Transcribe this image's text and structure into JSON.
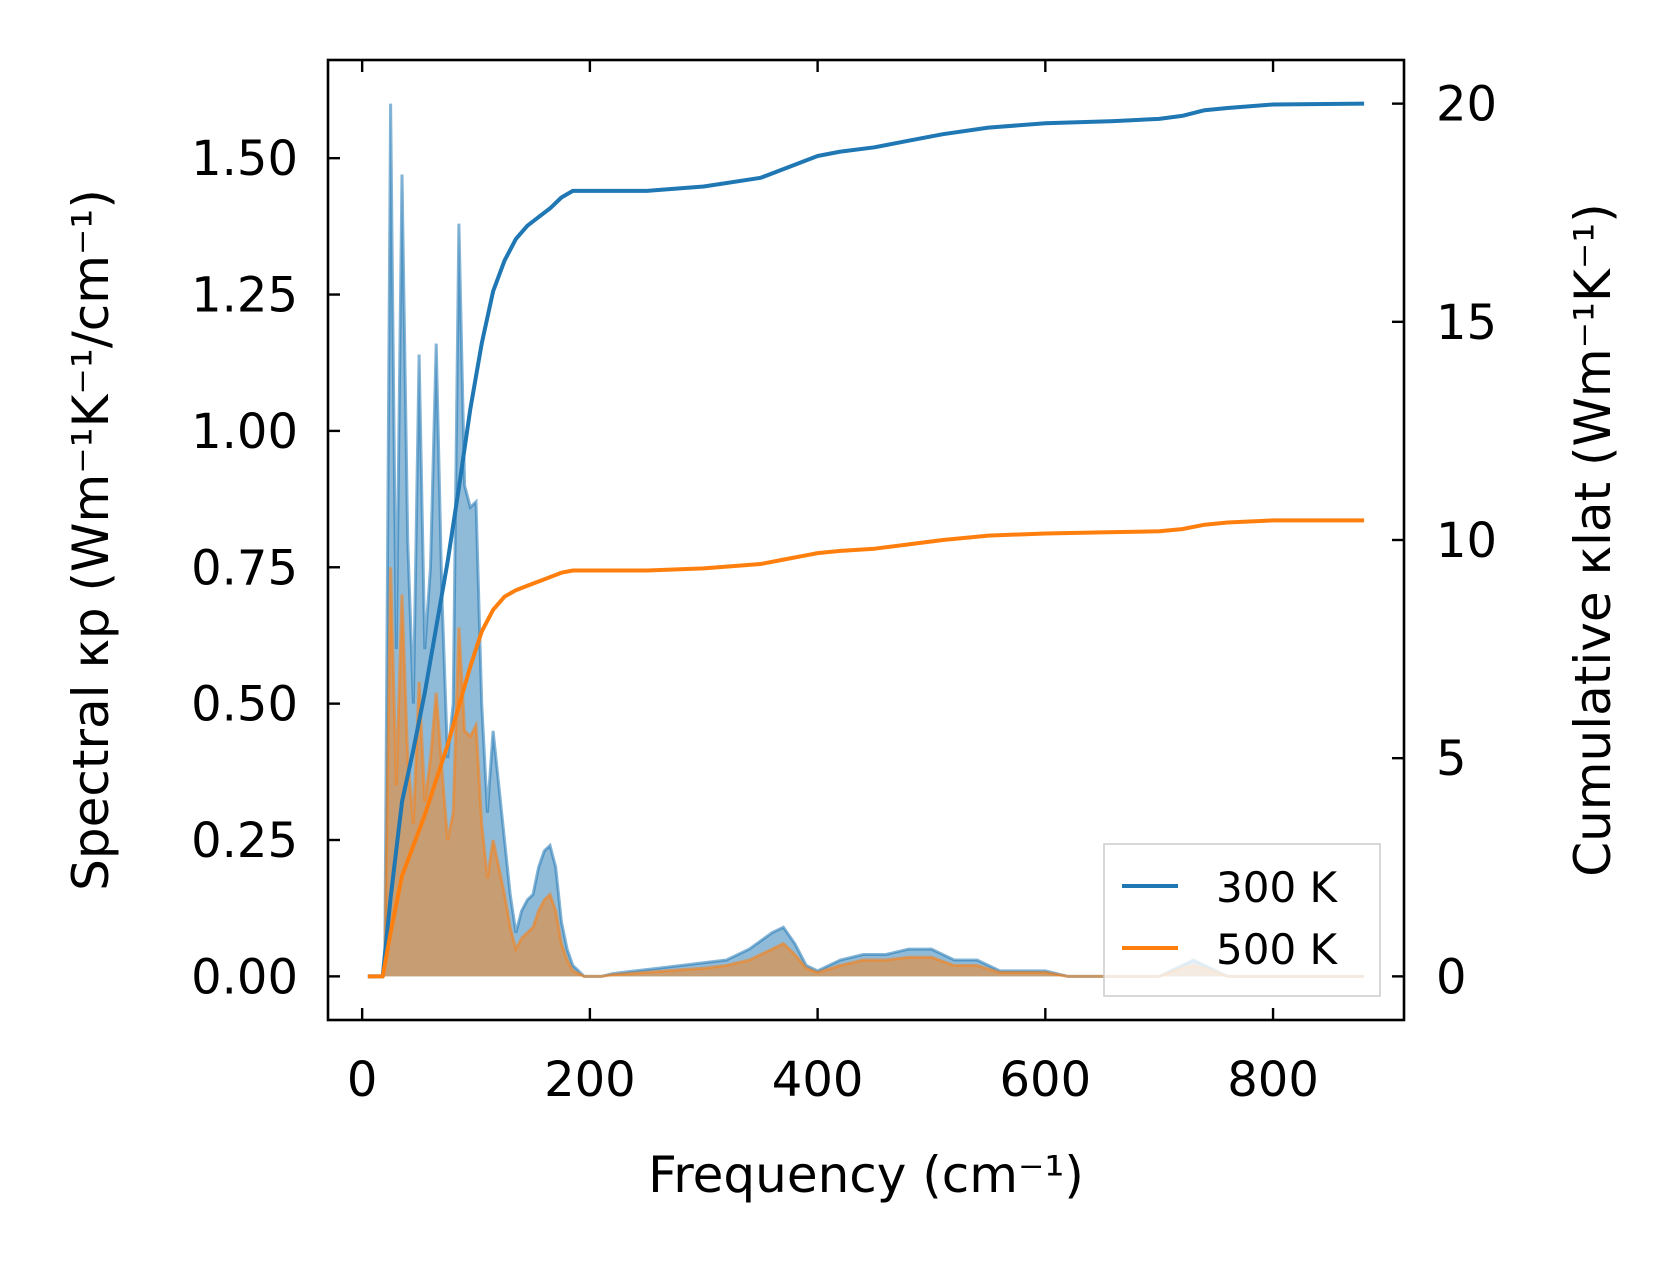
{
  "chart_data": {
    "type": "line",
    "title": "",
    "xlabel": "Frequency (cm⁻¹)",
    "ylabel_left": "Spectral κp (Wm⁻¹K⁻¹/cm⁻¹)",
    "ylabel_right": "Cumulative κlat (Wm⁻¹K⁻¹)",
    "xlim": [
      -30,
      915
    ],
    "ylim_left": [
      -0.08,
      1.68
    ],
    "ylim_right": [
      -1.0,
      21.0
    ],
    "xticks": [
      0,
      200,
      400,
      600,
      800
    ],
    "yticks_left": [
      0.0,
      0.25,
      0.5,
      0.75,
      1.0,
      1.25,
      1.5
    ],
    "yticks_left_labels": [
      "0.00",
      "0.25",
      "0.50",
      "0.75",
      "1.00",
      "1.25",
      "1.50"
    ],
    "yticks_right": [
      0,
      5,
      10,
      15,
      20
    ],
    "yticks_right_labels": [
      "0",
      "5",
      "10",
      "15",
      "20"
    ],
    "legend": {
      "position": "lower-right",
      "entries": [
        "300 K",
        "500 K"
      ]
    },
    "colors": {
      "300K": "#1f77b4",
      "500K": "#ff7f0e"
    },
    "spectral_series": [
      {
        "name": "300 K",
        "color": "#1f77b4",
        "x": [
          5,
          18,
          20,
          25,
          30,
          35,
          40,
          45,
          50,
          55,
          60,
          65,
          70,
          75,
          80,
          85,
          90,
          95,
          100,
          105,
          110,
          115,
          120,
          125,
          130,
          135,
          140,
          145,
          150,
          155,
          160,
          165,
          170,
          175,
          180,
          185,
          190,
          195,
          200,
          210,
          220,
          240,
          260,
          280,
          300,
          320,
          340,
          360,
          370,
          380,
          390,
          400,
          420,
          440,
          460,
          480,
          500,
          520,
          540,
          560,
          580,
          600,
          620,
          640,
          660,
          680,
          700,
          720,
          730,
          740,
          760,
          780,
          800,
          820,
          840,
          860,
          880
        ],
        "y": [
          0.0,
          0.0,
          0.05,
          1.6,
          0.6,
          1.47,
          0.8,
          0.5,
          1.14,
          0.6,
          0.75,
          1.16,
          0.7,
          0.4,
          0.5,
          1.38,
          0.9,
          0.86,
          0.87,
          0.5,
          0.3,
          0.45,
          0.35,
          0.25,
          0.15,
          0.08,
          0.12,
          0.14,
          0.15,
          0.2,
          0.23,
          0.24,
          0.2,
          0.1,
          0.05,
          0.02,
          0.01,
          0.0,
          0.0,
          0.0,
          0.005,
          0.01,
          0.015,
          0.02,
          0.025,
          0.03,
          0.05,
          0.08,
          0.09,
          0.06,
          0.02,
          0.01,
          0.03,
          0.04,
          0.04,
          0.05,
          0.05,
          0.03,
          0.03,
          0.01,
          0.01,
          0.01,
          0.0,
          0.0,
          0.0,
          0.0,
          0.0,
          0.02,
          0.03,
          0.02,
          0.0,
          0.0,
          0.0,
          0.0,
          0.0,
          0.0,
          0.0
        ]
      },
      {
        "name": "500 K",
        "color": "#ff7f0e",
        "x": [
          5,
          18,
          20,
          25,
          30,
          35,
          40,
          45,
          50,
          55,
          60,
          65,
          70,
          75,
          80,
          85,
          90,
          95,
          100,
          105,
          110,
          115,
          120,
          125,
          130,
          135,
          140,
          145,
          150,
          155,
          160,
          165,
          170,
          175,
          180,
          185,
          190,
          195,
          200,
          210,
          220,
          240,
          260,
          280,
          300,
          320,
          340,
          360,
          370,
          380,
          390,
          400,
          420,
          440,
          460,
          480,
          500,
          520,
          540,
          560,
          580,
          600,
          620,
          640,
          660,
          680,
          700,
          720,
          730,
          740,
          760,
          780,
          800,
          820,
          840,
          860,
          880
        ],
        "y": [
          0.0,
          0.0,
          0.03,
          0.75,
          0.35,
          0.7,
          0.4,
          0.28,
          0.54,
          0.32,
          0.4,
          0.52,
          0.38,
          0.25,
          0.3,
          0.64,
          0.45,
          0.44,
          0.46,
          0.28,
          0.18,
          0.25,
          0.2,
          0.15,
          0.09,
          0.05,
          0.07,
          0.08,
          0.09,
          0.12,
          0.14,
          0.15,
          0.12,
          0.06,
          0.03,
          0.01,
          0.005,
          0.0,
          0.0,
          0.0,
          0.003,
          0.006,
          0.009,
          0.012,
          0.015,
          0.02,
          0.03,
          0.05,
          0.06,
          0.04,
          0.015,
          0.007,
          0.02,
          0.03,
          0.03,
          0.035,
          0.035,
          0.02,
          0.02,
          0.007,
          0.007,
          0.007,
          0.0,
          0.0,
          0.0,
          0.0,
          0.0,
          0.015,
          0.02,
          0.015,
          0.0,
          0.0,
          0.0,
          0.0,
          0.0,
          0.0,
          0.0
        ]
      }
    ],
    "cumulative_series": [
      {
        "name": "300 K",
        "color": "#1f77b4",
        "x": [
          5,
          18,
          25,
          35,
          45,
          55,
          65,
          75,
          85,
          95,
          105,
          115,
          125,
          135,
          145,
          155,
          165,
          175,
          185,
          200,
          250,
          300,
          350,
          370,
          390,
          400,
          420,
          450,
          480,
          510,
          550,
          600,
          660,
          700,
          720,
          740,
          760,
          800,
          880
        ],
        "y": [
          0.0,
          0.0,
          1.8,
          4.0,
          5.2,
          6.5,
          8.0,
          9.5,
          11.2,
          13.0,
          14.5,
          15.7,
          16.4,
          16.9,
          17.2,
          17.4,
          17.6,
          17.85,
          18.0,
          18.0,
          18.0,
          18.1,
          18.3,
          18.5,
          18.7,
          18.8,
          18.9,
          19.0,
          19.15,
          19.3,
          19.45,
          19.55,
          19.6,
          19.65,
          19.72,
          19.85,
          19.9,
          19.98,
          20.0
        ]
      },
      {
        "name": "500 K",
        "color": "#ff7f0e",
        "x": [
          5,
          18,
          25,
          35,
          45,
          55,
          65,
          75,
          85,
          95,
          105,
          115,
          125,
          135,
          145,
          155,
          165,
          175,
          185,
          200,
          250,
          300,
          350,
          370,
          390,
          400,
          420,
          450,
          480,
          510,
          550,
          600,
          660,
          700,
          720,
          740,
          760,
          800,
          880
        ],
        "y": [
          0.0,
          0.0,
          1.0,
          2.3,
          3.0,
          3.7,
          4.5,
          5.3,
          6.2,
          7.1,
          7.9,
          8.4,
          8.7,
          8.85,
          8.95,
          9.05,
          9.15,
          9.25,
          9.3,
          9.3,
          9.3,
          9.35,
          9.45,
          9.55,
          9.65,
          9.7,
          9.75,
          9.8,
          9.9,
          10.0,
          10.1,
          10.15,
          10.18,
          10.2,
          10.25,
          10.35,
          10.4,
          10.45,
          10.45
        ]
      }
    ]
  }
}
